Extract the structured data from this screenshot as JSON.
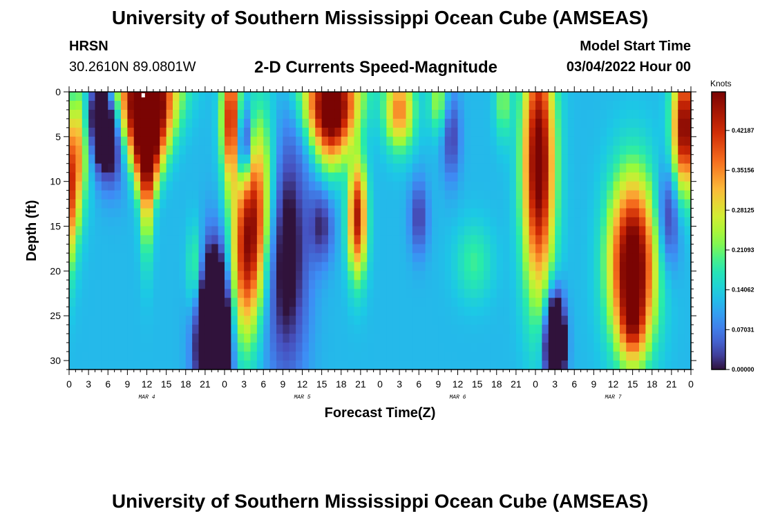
{
  "header": {
    "title": "University of Southern Mississippi Ocean Cube (AMSEAS)",
    "station": "HRSN",
    "coords": "30.2610N  89.0801W",
    "plot_title": "2-D Currents Speed-Magnitude",
    "model_start_label": "Model Start Time",
    "model_start_value": "03/04/2022 Hour 00"
  },
  "footer": {
    "title": "University of Southern Mississippi Ocean Cube (AMSEAS)"
  },
  "chart_data": {
    "type": "heatmap",
    "title": "2-D Currents Speed-Magnitude",
    "xlabel": "Forecast Time(Z)",
    "ylabel": "Depth (ft)",
    "colorbar_unit": "Knots",
    "x_tick_labels": [
      "0",
      "3",
      "6",
      "9",
      "12",
      "15",
      "18",
      "21",
      "0",
      "3",
      "6",
      "9",
      "12",
      "15",
      "18",
      "21",
      "0",
      "3",
      "6",
      "9",
      "12",
      "15",
      "18",
      "21",
      "0",
      "3",
      "6",
      "9",
      "12",
      "15",
      "18",
      "21",
      "0"
    ],
    "x_range_hours": [
      0,
      96
    ],
    "date_labels": [
      {
        "label": "MAR 4",
        "hour": 12
      },
      {
        "label": "MAR 5",
        "hour": 36
      },
      {
        "label": "MAR 6",
        "hour": 60
      },
      {
        "label": "MAR 7",
        "hour": 84
      }
    ],
    "y_ticks": [
      0,
      5,
      10,
      15,
      20,
      25,
      30
    ],
    "ylim": [
      0,
      31
    ],
    "y_inverted": true,
    "colorbar_ticks": [
      "0.42187",
      "0.35156",
      "0.28125",
      "0.21093",
      "0.14062",
      "0.07031",
      "0.00000"
    ],
    "color_range": [
      0,
      0.49
    ],
    "features": [
      {
        "t": 2,
        "d": 12,
        "st": 1.6,
        "sd": 9,
        "v": 0.32,
        "b": -6,
        "shape": 0
      },
      {
        "t": 4.5,
        "d": 3.5,
        "st": 1.8,
        "sd": 4,
        "v": -0.28,
        "b": 5,
        "shape": 0
      },
      {
        "t": 12,
        "d": 2,
        "st": 3.2,
        "sd": 5,
        "v": 0.46,
        "b": 0,
        "shape": 1
      },
      {
        "t": 12,
        "d": 9,
        "st": 2.0,
        "sd": 6,
        "v": 0.22,
        "b": 0,
        "shape": 1
      },
      {
        "t": 19.5,
        "d": 20,
        "st": 0.9,
        "sd": 3.5,
        "v": 0.11,
        "b": 0,
        "shape": 0
      },
      {
        "t": 22.5,
        "d": 27,
        "st": 1.8,
        "sd": 6,
        "v": -0.45,
        "b": 0,
        "shape": 0
      },
      {
        "t": 25,
        "d": 3,
        "st": 1.0,
        "sd": 5,
        "v": 0.32,
        "b": 0,
        "shape": 0
      },
      {
        "t": 27,
        "d": 6,
        "st": 0.8,
        "sd": 3,
        "v": -0.22,
        "b": 0,
        "shape": 0
      },
      {
        "t": 29.5,
        "d": 16,
        "st": 2.0,
        "sd": 8,
        "v": 0.38,
        "b": -3,
        "shape": 0
      },
      {
        "t": 33.5,
        "d": 18,
        "st": 2.4,
        "sd": 10,
        "v": -0.15,
        "b": 0,
        "shape": 0
      },
      {
        "t": 40.5,
        "d": 2,
        "st": 3.0,
        "sd": 4,
        "v": 0.44,
        "b": 0,
        "shape": 1
      },
      {
        "t": 39,
        "d": 15,
        "st": 1.3,
        "sd": 3,
        "v": -0.1,
        "b": 0,
        "shape": 0
      },
      {
        "t": 44.5,
        "d": 14,
        "st": 1.0,
        "sd": 4.5,
        "v": 0.33,
        "b": 0,
        "shape": 0
      },
      {
        "t": 51,
        "d": 2,
        "st": 1.6,
        "sd": 3,
        "v": 0.24,
        "b": 0,
        "shape": 0
      },
      {
        "t": 54,
        "d": 14,
        "st": 1.0,
        "sd": 3,
        "v": -0.1,
        "b": 0,
        "shape": 0
      },
      {
        "t": 57,
        "d": 1,
        "st": 1.0,
        "sd": 2.5,
        "v": 0.12,
        "b": 0,
        "shape": 0
      },
      {
        "t": 59,
        "d": 5,
        "st": 1.0,
        "sd": 3.5,
        "v": -0.1,
        "b": 0,
        "shape": 0
      },
      {
        "t": 62.5,
        "d": 19,
        "st": 2.0,
        "sd": 3,
        "v": 0.07,
        "b": 0,
        "shape": 0
      },
      {
        "t": 67,
        "d": 1,
        "st": 0.9,
        "sd": 3,
        "v": 0.1,
        "b": 0,
        "shape": 0
      },
      {
        "t": 72.5,
        "d": 8,
        "st": 1.7,
        "sd": 10,
        "v": 0.4,
        "b": 0,
        "shape": 0
      },
      {
        "t": 75,
        "d": 28,
        "st": 1.0,
        "sd": 3.5,
        "v": -0.42,
        "b": 0,
        "shape": 0
      },
      {
        "t": 87,
        "d": 19,
        "st": 2.5,
        "sd": 6.5,
        "v": 0.42,
        "b": 0,
        "shape": 0
      },
      {
        "t": 87,
        "d": 26,
        "st": 1.4,
        "sd": 3,
        "v": 0.15,
        "b": 0,
        "shape": 0
      },
      {
        "t": 95,
        "d": 4,
        "st": 1.3,
        "sd": 5,
        "v": 0.38,
        "b": 0,
        "shape": 0
      },
      {
        "t": 92.5,
        "d": 14,
        "st": 1.3,
        "sd": 4,
        "v": -0.12,
        "b": 0,
        "shape": 0
      }
    ]
  }
}
